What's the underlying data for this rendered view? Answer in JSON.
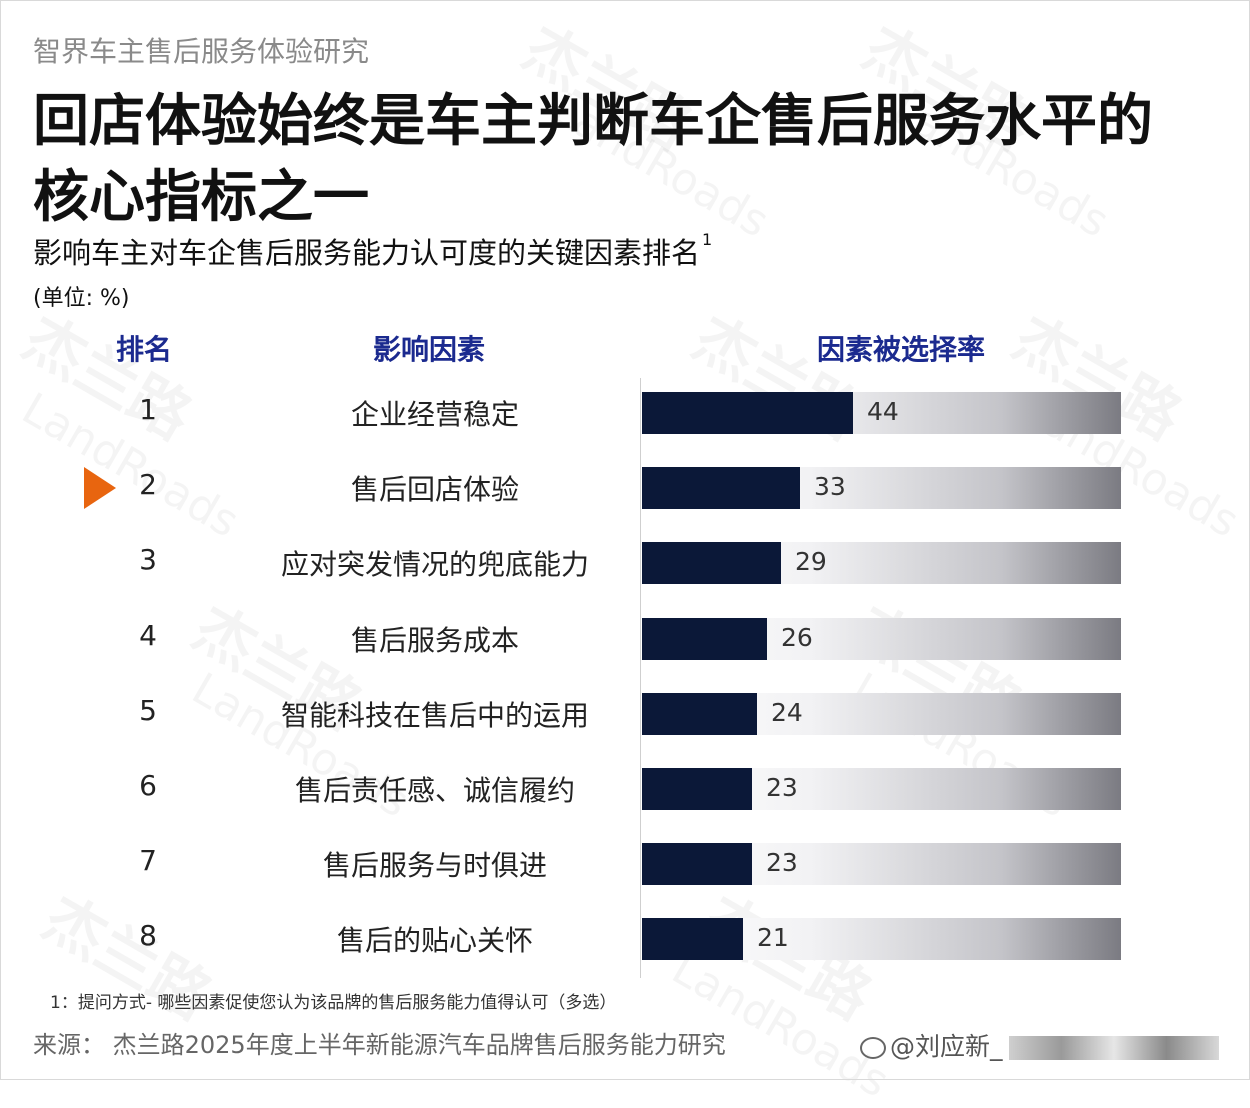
{
  "header": {
    "report_series": "智界车主售后服务体验研究",
    "headline": "回店体验始终是车主判断车企售后服务水平的核心指标之一",
    "subtitle": "影响车主对车企售后服务能力认可度的关键因素排名",
    "subtitle_note_ref": "1",
    "unit": "(单位: %)"
  },
  "columns": {
    "rank": "排名",
    "factor": "影响因素",
    "rate": "因素被选择率"
  },
  "chart_data": {
    "type": "bar",
    "orientation": "horizontal",
    "title": "影响车主对车企售后服务能力认可度的关键因素排名",
    "unit": "%",
    "xlim": [
      0,
      100
    ],
    "highlighted_rank": "2",
    "rows": [
      {
        "rank": "1",
        "factor": "企业经营稳定",
        "value": 44
      },
      {
        "rank": "2",
        "factor": "售后回店体验",
        "value": 33
      },
      {
        "rank": "3",
        "factor": "应对突发情况的兜底能力",
        "value": 29
      },
      {
        "rank": "4",
        "factor": "售后服务成本",
        "value": 26
      },
      {
        "rank": "5",
        "factor": "智能科技在售后中的运用",
        "value": 24
      },
      {
        "rank": "6",
        "factor": "售后责任感、诚信履约",
        "value": 23
      },
      {
        "rank": "7",
        "factor": "售后服务与时俱进",
        "value": 23
      },
      {
        "rank": "8",
        "factor": "售后的贴心关怀",
        "value": 21
      }
    ]
  },
  "footer": {
    "footnote": "1：提问方式- 哪些因素促使您认为该品牌的售后服务能力值得认可（多选）",
    "source": "来源：   杰兰路2025年度上半年新能源汽车品牌售后服务能力研究",
    "weibo_handle": "@刘应新_"
  },
  "watermark": {
    "cn": "杰兰路",
    "en": "LandRoads"
  },
  "colors": {
    "bar": "#0b1838",
    "header_blue": "#1b2a8f",
    "marker": "#e8650f"
  }
}
